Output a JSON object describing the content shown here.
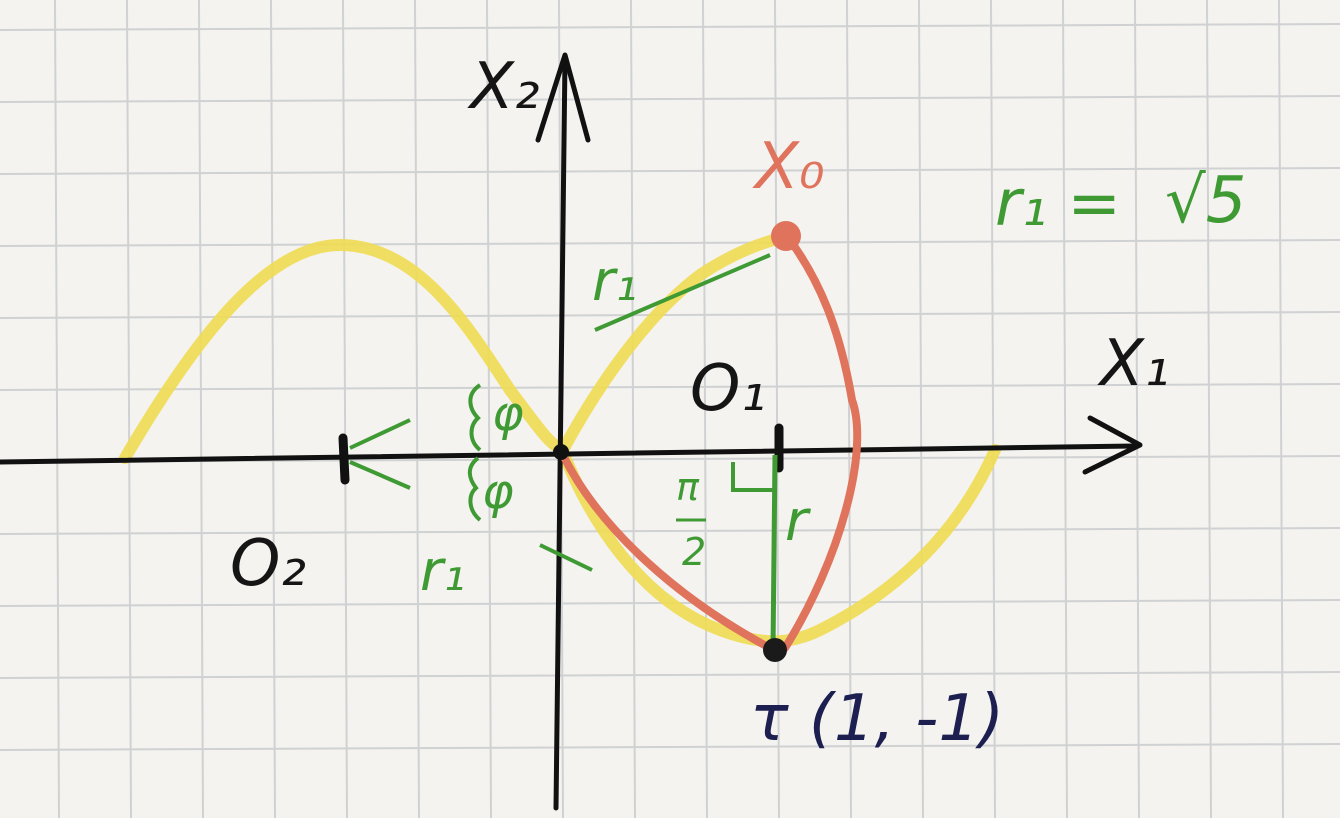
{
  "labels": {
    "x2_axis": "X₂",
    "x1_axis": "X₁",
    "x0": "X₀",
    "o1": "O₁",
    "o2": "O₂",
    "r1_formula_left": "r₁ =",
    "r1_formula_sqrt": "√5",
    "r1_upper": "r₁",
    "r1_lower": "r₁",
    "r_small": "r",
    "phi_upper": "φ",
    "phi_lower": "φ",
    "pi_half_top": "π",
    "pi_half_bottom": "2",
    "tau_point": "τ (1, -1)"
  },
  "colors": {
    "paper": "#f4f3f0",
    "grid": "#cfd1d2",
    "axis": "#111111",
    "curve": "#f0dc52",
    "path": "#e0735c",
    "construction": "#3f9a34",
    "tau_label": "#1c1f4f"
  }
}
